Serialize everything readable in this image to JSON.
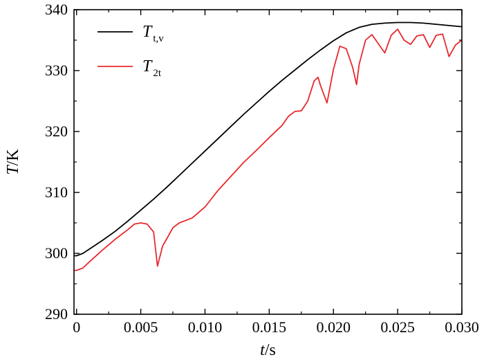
{
  "chart_data": {
    "type": "line",
    "xlim": [
      -0.0002,
      0.03
    ],
    "ylim": [
      290,
      340
    ],
    "x_ticks": [
      0,
      0.005,
      0.01,
      0.015,
      0.02,
      0.025,
      0.03
    ],
    "x_tick_labels": [
      "0",
      "0.005",
      "0.010",
      "0.015",
      "0.020",
      "0.025",
      "0.030"
    ],
    "y_ticks": [
      290,
      300,
      310,
      320,
      330,
      340
    ],
    "y_tick_labels": [
      "290",
      "300",
      "310",
      "320",
      "330",
      "340"
    ],
    "xlabel": {
      "var": "t",
      "unit": "/s"
    },
    "ylabel": {
      "var": "T",
      "unit": "/K"
    },
    "grid": false,
    "legend_position": "top-left",
    "series": [
      {
        "name": "T t,v",
        "legend_main": "T",
        "legend_sub": "t,v",
        "color": "#000000",
        "x": [
          -0.0002,
          0.0,
          0.0005,
          0.001,
          0.002,
          0.003,
          0.004,
          0.005,
          0.006,
          0.007,
          0.008,
          0.009,
          0.01,
          0.011,
          0.012,
          0.013,
          0.014,
          0.015,
          0.016,
          0.017,
          0.018,
          0.019,
          0.02,
          0.021,
          0.022,
          0.023,
          0.024,
          0.025,
          0.026,
          0.027,
          0.028,
          0.029,
          0.03
        ],
        "y": [
          299.6,
          299.6,
          300.0,
          300.7,
          302.1,
          303.6,
          305.3,
          307.1,
          308.9,
          310.8,
          312.8,
          314.8,
          316.8,
          318.8,
          320.8,
          322.8,
          324.7,
          326.6,
          328.4,
          330.1,
          331.8,
          333.4,
          334.9,
          336.2,
          337.1,
          337.6,
          337.8,
          337.9,
          337.9,
          337.8,
          337.6,
          337.4,
          337.2
        ]
      },
      {
        "name": "T 2t",
        "legend_main": "T",
        "legend_sub": "2t",
        "color": "#e8282d",
        "x": [
          -0.0002,
          0.0,
          0.0005,
          0.001,
          0.002,
          0.003,
          0.004,
          0.0045,
          0.005,
          0.0055,
          0.006,
          0.0063,
          0.0067,
          0.007,
          0.0075,
          0.008,
          0.009,
          0.01,
          0.011,
          0.012,
          0.013,
          0.014,
          0.015,
          0.016,
          0.0165,
          0.017,
          0.0175,
          0.018,
          0.0185,
          0.0188,
          0.019,
          0.0195,
          0.02,
          0.0205,
          0.021,
          0.0215,
          0.0218,
          0.022,
          0.0225,
          0.023,
          0.0235,
          0.024,
          0.0245,
          0.025,
          0.0255,
          0.026,
          0.0265,
          0.027,
          0.0275,
          0.028,
          0.0285,
          0.029,
          0.0295,
          0.03
        ],
        "y": [
          297.2,
          297.2,
          297.6,
          298.6,
          300.5,
          302.3,
          303.9,
          304.8,
          305.0,
          304.8,
          303.5,
          297.9,
          301.2,
          302.3,
          304.2,
          305.0,
          305.8,
          307.6,
          310.3,
          312.6,
          314.9,
          316.9,
          319.0,
          321.0,
          322.5,
          323.3,
          323.4,
          325.0,
          328.3,
          328.9,
          327.5,
          324.7,
          330.2,
          334.0,
          333.6,
          330.5,
          327.7,
          331.0,
          335.0,
          335.9,
          334.4,
          332.9,
          335.8,
          336.8,
          335.0,
          334.3,
          335.7,
          335.9,
          333.8,
          335.8,
          336.0,
          332.3,
          334.2,
          335.0
        ]
      }
    ]
  }
}
